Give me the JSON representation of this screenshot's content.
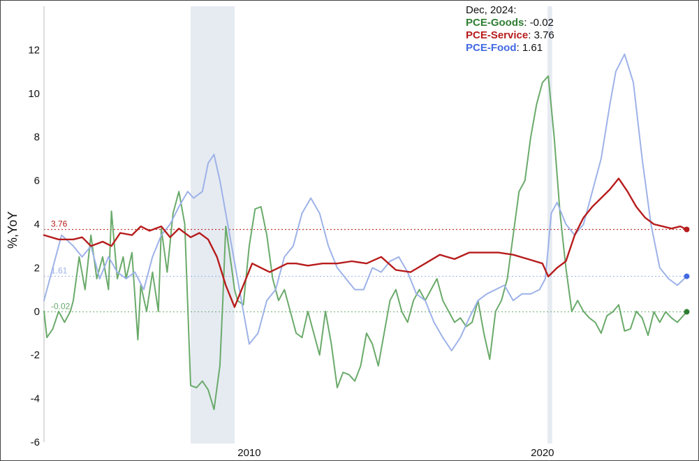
{
  "legend": {
    "date": "Dec, 2024:",
    "entries": [
      {
        "name": "PCE-Goods",
        "sep": ": ",
        "value": "-0.02"
      },
      {
        "name": "PCE-Service",
        "sep": ": ",
        "value": "3.76"
      },
      {
        "name": "PCE-Food",
        "sep": ": ",
        "value": "1.61"
      }
    ]
  },
  "colors": {
    "goods": "#2e7d32",
    "goods_line": "#6aaa6a",
    "service": "#b71c1c",
    "service_line": "#b71c1c",
    "food": "#4169e1",
    "food_line": "#9db2e8",
    "recession": "#e6ebf2"
  },
  "chart_data": {
    "type": "line",
    "ylabel": "%,YoY",
    "ylim": [
      -6,
      14
    ],
    "yticks": [
      -6,
      -4,
      -2,
      0,
      2,
      4,
      6,
      8,
      10,
      12
    ],
    "xlim": [
      2003.0,
      2025.1
    ],
    "xticks": [
      {
        "value": 2010,
        "label": "2010"
      },
      {
        "value": 2020,
        "label": "2020"
      }
    ],
    "recessions": [
      [
        2008.0,
        2009.5
      ],
      [
        2020.17,
        2020.33
      ]
    ],
    "end_labels": [
      {
        "series": "PCE-Service",
        "text": "3.76"
      },
      {
        "series": "PCE-Food",
        "text": "1.61"
      },
      {
        "series": "PCE-Goods",
        "text": "-0.02"
      }
    ],
    "series": [
      {
        "name": "PCE-Goods",
        "x": [
          2003.0,
          2003.1,
          2003.3,
          2003.5,
          2003.7,
          2003.9,
          2004.0,
          2004.2,
          2004.4,
          2004.6,
          2004.8,
          2005.0,
          2005.2,
          2005.3,
          2005.5,
          2005.7,
          2005.8,
          2006.0,
          2006.2,
          2006.3,
          2006.5,
          2006.7,
          2006.9,
          2007.0,
          2007.2,
          2007.4,
          2007.6,
          2007.8,
          2008.0,
          2008.2,
          2008.4,
          2008.6,
          2008.8,
          2009.0,
          2009.1,
          2009.2,
          2009.4,
          2009.5,
          2009.6,
          2009.8,
          2010.0,
          2010.2,
          2010.4,
          2010.6,
          2010.8,
          2011.0,
          2011.2,
          2011.4,
          2011.6,
          2011.8,
          2012.0,
          2012.2,
          2012.4,
          2012.6,
          2012.8,
          2013.0,
          2013.2,
          2013.4,
          2013.6,
          2013.8,
          2014.0,
          2014.2,
          2014.4,
          2014.6,
          2014.8,
          2015.0,
          2015.2,
          2015.4,
          2015.6,
          2015.8,
          2016.0,
          2016.2,
          2016.4,
          2016.6,
          2016.8,
          2017.0,
          2017.2,
          2017.4,
          2017.6,
          2017.8,
          2018.0,
          2018.2,
          2018.4,
          2018.6,
          2018.8,
          2019.0,
          2019.2,
          2019.4,
          2019.6,
          2019.8,
          2020.0,
          2020.2,
          2020.4,
          2020.6,
          2020.8,
          2021.0,
          2021.2,
          2021.4,
          2021.6,
          2021.8,
          2022.0,
          2022.2,
          2022.4,
          2022.6,
          2022.8,
          2023.0,
          2023.2,
          2023.4,
          2023.6,
          2023.8,
          2024.0,
          2024.2,
          2024.4,
          2024.6,
          2024.8,
          2024.92
        ],
        "values": [
          0.0,
          -1.2,
          -0.8,
          0.0,
          -0.5,
          0.0,
          0.5,
          2.5,
          1.0,
          3.5,
          1.5,
          2.5,
          1.0,
          4.6,
          1.5,
          2.5,
          1.5,
          2.7,
          -1.3,
          1.2,
          0.0,
          1.8,
          0.0,
          3.8,
          1.8,
          4.5,
          5.5,
          4.0,
          -3.4,
          -3.5,
          -3.2,
          -3.6,
          -4.5,
          -2.5,
          0.5,
          3.9,
          2.0,
          1.0,
          0.5,
          0.3,
          3.0,
          4.7,
          4.8,
          3.5,
          1.5,
          0.5,
          1.0,
          0.0,
          -1.0,
          -1.2,
          0.0,
          -1.0,
          -2.0,
          0.0,
          -1.5,
          -3.5,
          -2.8,
          -2.9,
          -3.2,
          -2.5,
          -1.0,
          -1.5,
          -2.5,
          -1.0,
          0.5,
          1.0,
          0.0,
          -0.5,
          0.5,
          1.0,
          0.5,
          1.0,
          1.5,
          0.5,
          0.0,
          -0.5,
          -0.3,
          -0.7,
          -0.5,
          0.5,
          -1.0,
          -2.2,
          0.0,
          0.5,
          1.5,
          3.5,
          5.5,
          6.0,
          8.0,
          9.5,
          10.5,
          10.8,
          8.0,
          4.5,
          2.0,
          0.0,
          0.5,
          0.0,
          -0.3,
          -0.5,
          -1.0,
          -0.2,
          -0.02,
          0.3,
          -0.9,
          -0.8,
          0.0,
          -0.3,
          -1.1,
          -0.02,
          -0.5,
          -0.02,
          -0.3,
          -0.5,
          -0.2,
          -0.02
        ]
      },
      {
        "name": "PCE-Service",
        "x": [
          2003.0,
          2003.5,
          2004.0,
          2004.3,
          2004.6,
          2005.0,
          2005.3,
          2005.6,
          2006.0,
          2006.3,
          2006.6,
          2007.0,
          2007.3,
          2007.6,
          2008.0,
          2008.3,
          2008.6,
          2008.9,
          2009.2,
          2009.5,
          2009.8,
          2010.1,
          2010.4,
          2010.7,
          2011.0,
          2011.3,
          2011.6,
          2012.0,
          2012.5,
          2013.0,
          2013.5,
          2014.0,
          2014.5,
          2015.0,
          2015.5,
          2016.0,
          2016.5,
          2017.0,
          2017.5,
          2018.0,
          2018.5,
          2019.0,
          2019.5,
          2020.0,
          2020.2,
          2020.5,
          2020.8,
          2021.1,
          2021.4,
          2021.7,
          2022.0,
          2022.3,
          2022.6,
          2022.9,
          2023.2,
          2023.5,
          2023.8,
          2024.1,
          2024.4,
          2024.7,
          2024.92
        ],
        "values": [
          3.5,
          3.3,
          3.3,
          3.4,
          3.0,
          3.2,
          3.0,
          3.6,
          3.5,
          3.9,
          3.7,
          3.9,
          3.4,
          3.8,
          3.4,
          3.6,
          3.3,
          2.5,
          1.2,
          0.2,
          1.2,
          2.2,
          2.0,
          1.8,
          2.0,
          2.2,
          2.2,
          2.1,
          2.2,
          2.2,
          2.3,
          2.2,
          2.5,
          1.9,
          1.8,
          2.2,
          2.6,
          2.4,
          2.7,
          2.7,
          2.7,
          2.6,
          2.4,
          2.2,
          1.6,
          2.0,
          2.3,
          3.5,
          4.3,
          4.8,
          5.2,
          5.6,
          6.1,
          5.5,
          4.8,
          4.3,
          4.0,
          3.9,
          3.8,
          3.9,
          3.76
        ]
      },
      {
        "name": "PCE-Food",
        "x": [
          2003.0,
          2003.3,
          2003.6,
          2004.0,
          2004.3,
          2004.6,
          2004.9,
          2005.2,
          2005.5,
          2005.8,
          2006.1,
          2006.4,
          2006.7,
          2007.0,
          2007.3,
          2007.6,
          2007.9,
          2008.1,
          2008.4,
          2008.6,
          2008.8,
          2009.0,
          2009.2,
          2009.4,
          2009.6,
          2009.8,
          2010.0,
          2010.3,
          2010.6,
          2010.9,
          2011.2,
          2011.5,
          2011.8,
          2012.1,
          2012.4,
          2012.7,
          2013.0,
          2013.3,
          2013.6,
          2013.9,
          2014.2,
          2014.5,
          2014.8,
          2015.1,
          2015.4,
          2015.7,
          2016.0,
          2016.3,
          2016.6,
          2016.9,
          2017.2,
          2017.5,
          2017.8,
          2018.1,
          2018.4,
          2018.7,
          2019.0,
          2019.3,
          2019.6,
          2019.9,
          2020.1,
          2020.3,
          2020.5,
          2020.8,
          2021.1,
          2021.4,
          2021.7,
          2022.0,
          2022.3,
          2022.5,
          2022.8,
          2023.1,
          2023.4,
          2023.7,
          2024.0,
          2024.3,
          2024.6,
          2024.92
        ],
        "values": [
          0.5,
          2.0,
          3.5,
          3.0,
          2.5,
          3.0,
          1.5,
          2.5,
          1.8,
          1.5,
          1.8,
          1.0,
          2.5,
          3.5,
          4.0,
          4.8,
          5.5,
          5.2,
          5.5,
          6.8,
          7.2,
          6.0,
          4.5,
          3.0,
          1.5,
          0.0,
          -1.5,
          -1.0,
          0.5,
          1.0,
          2.5,
          3.0,
          4.5,
          5.2,
          4.5,
          3.0,
          2.0,
          1.5,
          1.0,
          1.0,
          2.0,
          1.8,
          2.3,
          2.5,
          1.8,
          0.8,
          0.5,
          -0.5,
          -1.2,
          -1.8,
          -1.2,
          -0.3,
          0.5,
          0.8,
          1.0,
          1.2,
          0.5,
          0.8,
          0.8,
          1.0,
          1.5,
          4.5,
          5.0,
          4.0,
          3.5,
          4.0,
          5.5,
          7.0,
          9.5,
          11.0,
          11.8,
          10.5,
          7.0,
          4.0,
          2.0,
          1.5,
          1.2,
          1.61
        ]
      }
    ]
  }
}
